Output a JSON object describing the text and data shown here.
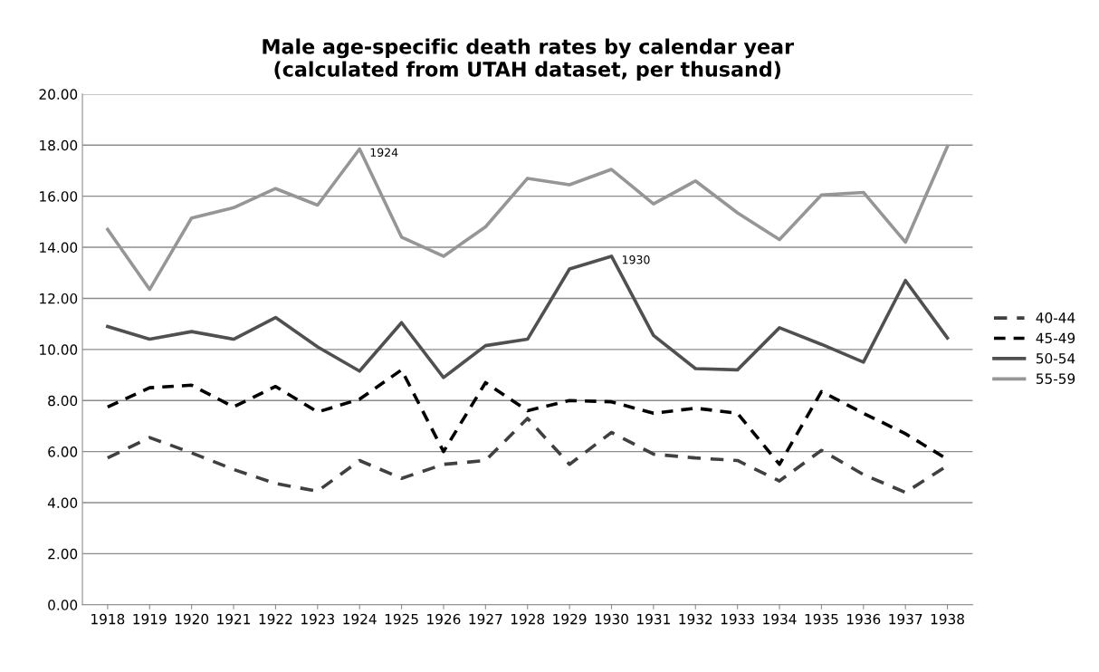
{
  "chart_data": {
    "type": "line",
    "title": "Male age-specific death rates by calendar year\n(calculated from UTAH dataset, per thusand)",
    "categories": [
      "1918",
      "1919",
      "1920",
      "1921",
      "1922",
      "1923",
      "1924",
      "1925",
      "1926",
      "1927",
      "1928",
      "1929",
      "1930",
      "1931",
      "1932",
      "1933",
      "1934",
      "1935",
      "1936",
      "1937",
      "1938"
    ],
    "series": [
      {
        "name": "40-44",
        "color": "#404040",
        "line_style": "dashed",
        "values": [
          5.75,
          6.55,
          5.95,
          5.3,
          4.75,
          4.45,
          5.65,
          4.95,
          5.5,
          5.65,
          7.3,
          5.5,
          6.75,
          5.9,
          5.75,
          5.65,
          4.85,
          6.05,
          5.1,
          4.4,
          5.45
        ]
      },
      {
        "name": "45-49",
        "color": "#000000",
        "line_style": "dashed",
        "values": [
          7.75,
          8.5,
          8.6,
          7.75,
          8.55,
          7.55,
          8.05,
          9.2,
          6.0,
          8.7,
          7.6,
          8.0,
          7.95,
          7.5,
          7.7,
          7.5,
          5.5,
          8.35,
          7.5,
          6.7,
          5.7
        ]
      },
      {
        "name": "50-54",
        "color": "#505050",
        "line_style": "solid",
        "values": [
          10.9,
          10.4,
          10.7,
          10.4,
          11.25,
          10.1,
          9.15,
          11.05,
          8.9,
          10.15,
          10.4,
          13.15,
          13.65,
          10.55,
          9.25,
          9.2,
          10.85,
          10.2,
          9.5,
          12.7,
          10.45
        ]
      },
      {
        "name": "55-59",
        "color": "#969696",
        "line_style": "solid",
        "values": [
          14.7,
          12.35,
          15.15,
          15.55,
          16.3,
          15.65,
          17.85,
          14.4,
          13.65,
          14.8,
          16.7,
          16.45,
          17.05,
          15.7,
          16.6,
          15.35,
          14.3,
          16.05,
          16.15,
          14.2,
          17.95
        ]
      }
    ],
    "annotations": [
      {
        "text": "1924",
        "x": "1924",
        "y": 17.85
      },
      {
        "text": "1930",
        "x": "1930",
        "y": 13.65
      }
    ],
    "ylim": [
      0,
      20
    ],
    "yticks": [
      {
        "value": 0,
        "label": "0.00"
      },
      {
        "value": 2,
        "label": "2.00"
      },
      {
        "value": 4,
        "label": "4.00"
      },
      {
        "value": 6,
        "label": "6.00"
      },
      {
        "value": 8,
        "label": "8.00"
      },
      {
        "value": 10,
        "label": "10.00"
      },
      {
        "value": 12,
        "label": "12.00"
      },
      {
        "value": 14,
        "label": "14.00"
      },
      {
        "value": 16,
        "label": "16.00"
      },
      {
        "value": 18,
        "label": "18.00"
      },
      {
        "value": 20,
        "label": "20.00"
      }
    ],
    "grid": "y",
    "legend": "right",
    "marker": "none"
  }
}
